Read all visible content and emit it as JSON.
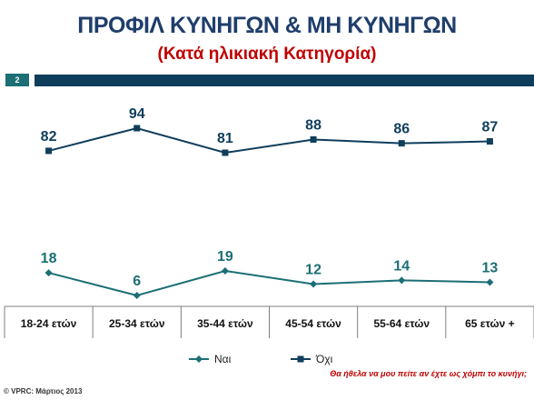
{
  "title": "ΠΡΟΦΙΛ ΚΥΝΗΓΩΝ & ΜΗ ΚΥΝΗΓΩΝ",
  "subtitle": "(Κατά ηλικιακή Κατηγορία)",
  "page_number": "2",
  "question": "Θα ήθελα να μου πείτε αν έχτε ως χόμπι το κυνήγι;",
  "copyright": "© VPRC: Μάρτιος 2013",
  "colors": {
    "title": "#1f3e6b",
    "subtitle": "#c00000",
    "nai": "#1b6f75",
    "ochi": "#0f3e5c"
  },
  "chart_data": {
    "type": "line",
    "categories": [
      "18-24 ετών",
      "25-34 ετών",
      "35-44 ετών",
      "45-54 ετών",
      "55-64 ετών",
      "65 ετών +"
    ],
    "series": [
      {
        "name": "Ναι",
        "values": [
          18,
          6,
          19,
          12,
          14,
          13
        ],
        "color": "#1b6f75",
        "marker": "diamond"
      },
      {
        "name": "Όχι",
        "values": [
          82,
          94,
          81,
          88,
          86,
          87
        ],
        "color": "#0f3e5c",
        "marker": "square"
      }
    ],
    "ylim": [
      0,
      100
    ],
    "grid": false,
    "legend": "bottom"
  }
}
